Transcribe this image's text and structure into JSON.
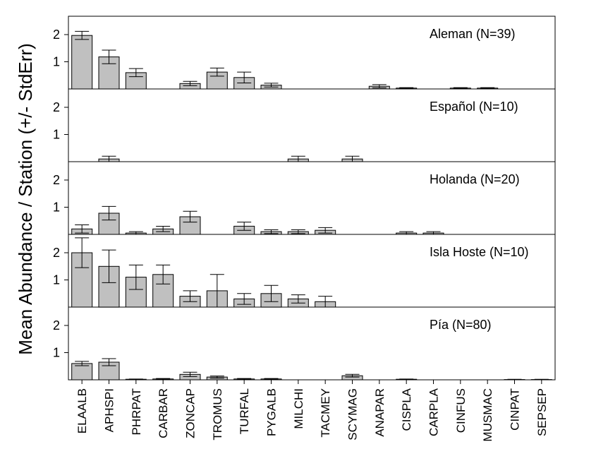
{
  "chart_data": {
    "type": "bar",
    "ylabel": "Mean Abundance / Station (+/- StdErr)",
    "categories": [
      "ELAALB",
      "APHSPI",
      "PHRPAT",
      "CARBAR",
      "ZONCAP",
      "TROMUS",
      "TURFAL",
      "PYGALB",
      "MILCHI",
      "TACMEY",
      "SCYMAG",
      "ANAPAR",
      "CISPLA",
      "CARPLA",
      "CINFUS",
      "MUSMAC",
      "CINPAT",
      "SEPSEP"
    ],
    "ylim": [
      0,
      2.55
    ],
    "yticks": [
      "1",
      "2"
    ],
    "error_bars": "StdErr",
    "bar_color": "#c0c0c0",
    "panels": [
      {
        "label": "Aleman (N=39)",
        "values": [
          1.97,
          1.18,
          0.6,
          0,
          0.2,
          0.62,
          0.42,
          0.14,
          0,
          0,
          0,
          0.1,
          0.03,
          0,
          0.03,
          0.03,
          0,
          0
        ],
        "errors": [
          0.15,
          0.25,
          0.15,
          0,
          0.08,
          0.15,
          0.2,
          0.07,
          0,
          0,
          0,
          0.06,
          0.02,
          0,
          0.02,
          0.02,
          0,
          0
        ]
      },
      {
        "label": "Español (N=10)",
        "values": [
          0,
          0.1,
          0,
          0,
          0,
          0,
          0,
          0,
          0.1,
          0,
          0.1,
          0,
          0,
          0,
          0,
          0,
          0,
          0
        ],
        "errors": [
          0,
          0.1,
          0,
          0,
          0,
          0,
          0,
          0,
          0.1,
          0,
          0.1,
          0,
          0,
          0,
          0,
          0,
          0,
          0
        ]
      },
      {
        "label": "Holanda (N=20)",
        "values": [
          0.2,
          0.78,
          0.05,
          0.2,
          0.65,
          0,
          0.3,
          0.1,
          0.1,
          0.15,
          0,
          0,
          0.05,
          0.05,
          0,
          0,
          0,
          0
        ],
        "errors": [
          0.15,
          0.25,
          0.05,
          0.1,
          0.2,
          0,
          0.15,
          0.07,
          0.07,
          0.1,
          0,
          0,
          0.05,
          0.05,
          0,
          0,
          0,
          0
        ]
      },
      {
        "label": "Isla Hoste (N=10)",
        "values": [
          2.0,
          1.5,
          1.1,
          1.2,
          0.4,
          0.6,
          0.3,
          0.5,
          0.3,
          0.2,
          0,
          0,
          0,
          0,
          0,
          0,
          0,
          0
        ],
        "errors": [
          0.55,
          0.6,
          0.45,
          0.35,
          0.2,
          0.6,
          0.2,
          0.3,
          0.15,
          0.2,
          0,
          0,
          0,
          0,
          0,
          0,
          0,
          0
        ]
      },
      {
        "label": "Pía (N=80)",
        "values": [
          0.6,
          0.65,
          0.02,
          0.03,
          0.2,
          0.1,
          0.03,
          0.03,
          0,
          0,
          0.15,
          0,
          0.02,
          0,
          0,
          0,
          0.01,
          0.01
        ],
        "errors": [
          0.08,
          0.13,
          0.01,
          0.02,
          0.08,
          0.04,
          0.02,
          0.02,
          0,
          0,
          0.05,
          0,
          0.01,
          0,
          0,
          0,
          0.01,
          0.01
        ]
      }
    ]
  }
}
